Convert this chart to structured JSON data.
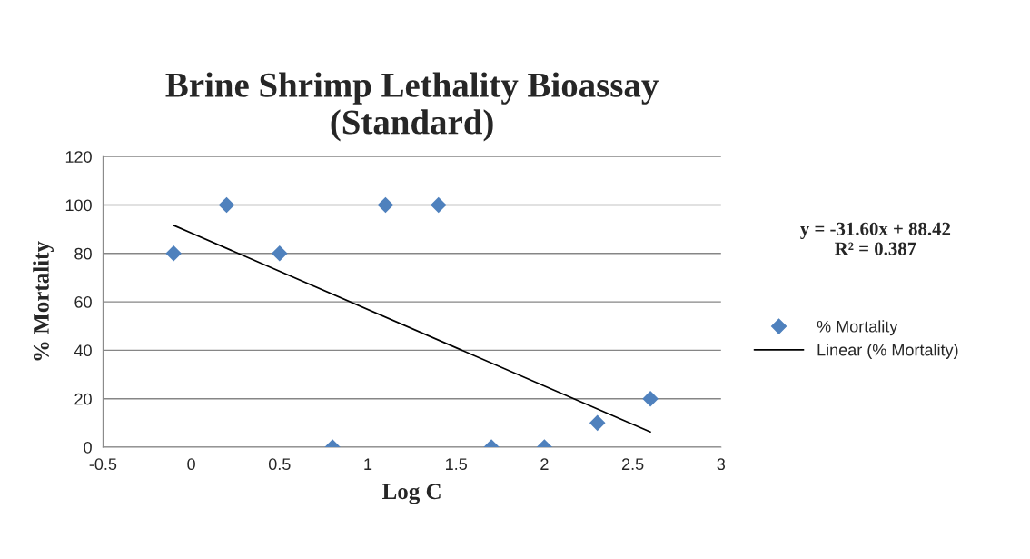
{
  "chart_data": {
    "type": "scatter",
    "title": "Brine Shrimp Lethality Bioassay\n(Standard)",
    "xlabel": "Log C",
    "ylabel": "% Mortality",
    "series": [
      {
        "name": "% Mortality",
        "marker": "diamond",
        "color": "#4f81bd",
        "x": [
          -0.1,
          0.2,
          0.5,
          0.8,
          1.1,
          1.4,
          1.7,
          2.0,
          2.3,
          2.6
        ],
        "values": [
          80,
          100,
          80,
          0,
          100,
          100,
          0,
          0,
          10,
          20
        ]
      },
      {
        "name": "Linear (% Mortality)",
        "type": "line",
        "color": "#000000",
        "x": [
          -0.1,
          2.6
        ],
        "values": [
          91.6,
          6.3
        ]
      }
    ],
    "annotations": [
      "y = -31.60x + 88.42\nR² = 0.387"
    ],
    "line_style": "solid",
    "xlim": [
      -0.5,
      3
    ],
    "xticks": [
      -0.5,
      0,
      0.5,
      1,
      1.5,
      2,
      2.5,
      3
    ],
    "ylim": [
      0,
      120
    ],
    "yticks": [
      0,
      20,
      40,
      60,
      80,
      100,
      120
    ],
    "grid": "y",
    "legend": "right"
  }
}
